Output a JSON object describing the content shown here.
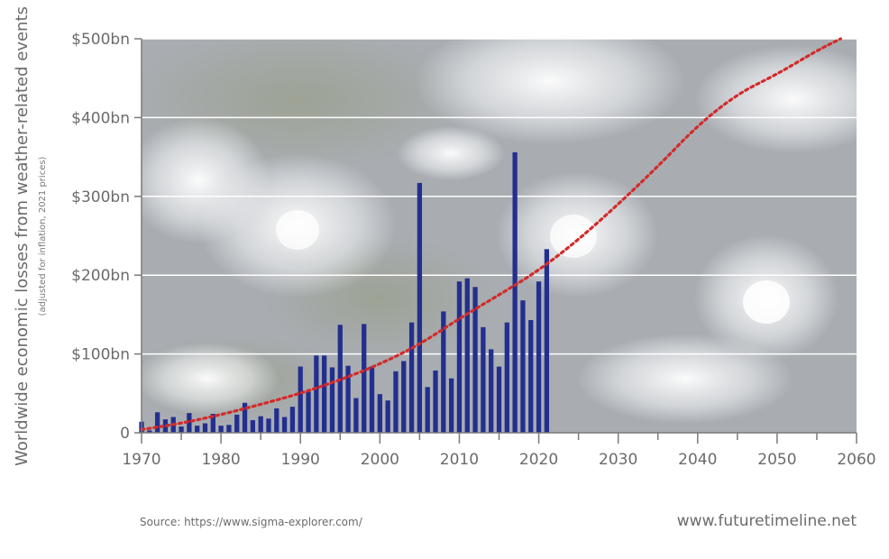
{
  "ylabel_main": "Worldwide economic losses from weather-related events",
  "ylabel_sub": "(adjusted for inflation, 2021 prices)",
  "source_text": "Source: https://www.sigma-explorer.com/",
  "site_text": "www.futuretimeline.net",
  "colors": {
    "bar": "#232f8e",
    "trend": "#d42a2a",
    "grid": "#ffffff",
    "axis": "#7a7a7a"
  },
  "chart_data": {
    "type": "bar",
    "xlim": [
      1970,
      2060
    ],
    "ylim": [
      0,
      500
    ],
    "x_ticks": [
      "1970",
      "1980",
      "1990",
      "2000",
      "2010",
      "2020",
      "2030",
      "2040",
      "2050",
      "2060"
    ],
    "y_ticks": [
      {
        "value": 0,
        "label": "0"
      },
      {
        "value": 100,
        "label": "$100bn"
      },
      {
        "value": 200,
        "label": "$200bn"
      },
      {
        "value": 300,
        "label": "$300bn"
      },
      {
        "value": 400,
        "label": "$400bn"
      },
      {
        "value": 500,
        "label": "$500bn"
      }
    ],
    "grid": true,
    "series": [
      {
        "type": "bar",
        "x": [
          1970,
          1971,
          1972,
          1973,
          1974,
          1975,
          1976,
          1977,
          1978,
          1979,
          1980,
          1981,
          1982,
          1983,
          1984,
          1985,
          1986,
          1987,
          1988,
          1989,
          1990,
          1991,
          1992,
          1993,
          1994,
          1995,
          1996,
          1997,
          1998,
          1999,
          2000,
          2001,
          2002,
          2003,
          2004,
          2005,
          2006,
          2007,
          2008,
          2009,
          2010,
          2011,
          2012,
          2013,
          2014,
          2015,
          2016,
          2017,
          2018,
          2019,
          2020,
          2021
        ],
        "values": [
          14,
          3,
          26,
          17,
          20,
          8,
          25,
          9,
          12,
          24,
          9,
          10,
          23,
          38,
          16,
          21,
          18,
          31,
          20,
          33,
          84,
          52,
          98,
          98,
          83,
          137,
          85,
          44,
          138,
          84,
          49,
          41,
          78,
          91,
          140,
          317,
          58,
          79,
          154,
          69,
          192,
          196,
          185,
          134,
          106,
          84,
          140,
          356,
          168,
          143,
          192,
          233
        ]
      },
      {
        "type": "line",
        "style": "dotted",
        "x": [
          1970,
          1975,
          1980,
          1985,
          1990,
          1995,
          2000,
          2005,
          2010,
          2015,
          2020,
          2025,
          2030,
          2035,
          2040,
          2045,
          2050,
          2055,
          2058
        ],
        "values": [
          4,
          12,
          23,
          36,
          50,
          67,
          87,
          112,
          145,
          175,
          206,
          245,
          290,
          338,
          390,
          430,
          455,
          485,
          500
        ]
      }
    ]
  }
}
